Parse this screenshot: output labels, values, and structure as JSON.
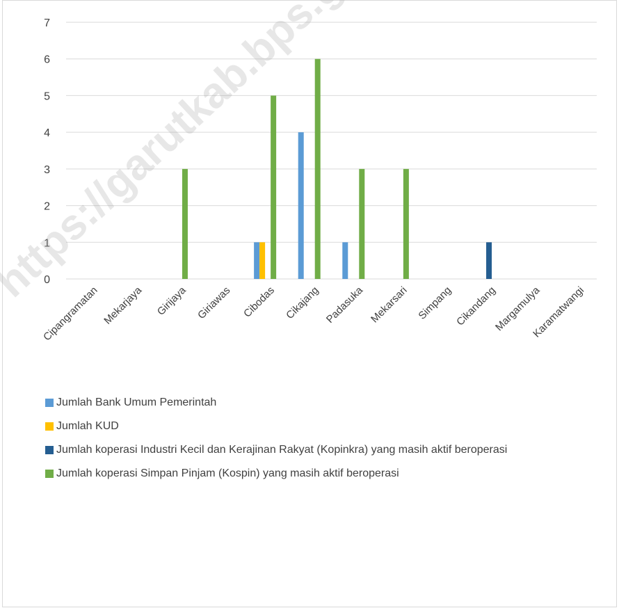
{
  "chart_data": {
    "type": "bar",
    "categories": [
      "Cipangramatan",
      "Mekarjaya",
      "Girijaya",
      "Giriawas",
      "Cibodas",
      "Cikajang",
      "Padasuka",
      "Mekarsari",
      "Simpang",
      "Cikandang",
      "Margamulya",
      "Karamatwangi"
    ],
    "series": [
      {
        "name": "Jumlah Bank Umum Pemerintah",
        "color": "#5b9bd5",
        "values": [
          0,
          0,
          0,
          0,
          1,
          4,
          1,
          0,
          0,
          0,
          0,
          0
        ]
      },
      {
        "name": "Jumlah KUD",
        "color": "#ffc000",
        "values": [
          0,
          0,
          0,
          0,
          1,
          0,
          0,
          0,
          0,
          0,
          0,
          0
        ]
      },
      {
        "name": "Jumlah koperasi Industri Kecil dan Kerajinan Rakyat (Kopinkra) yang masih aktif beroperasi",
        "color": "#255e91",
        "values": [
          0,
          0,
          0,
          0,
          0,
          0,
          0,
          0,
          0,
          1,
          0,
          0
        ]
      },
      {
        "name": "Jumlah koperasi Simpan Pinjam (Kospin) yang masih aktif  beroperasi",
        "color": "#70ad47",
        "values": [
          0,
          0,
          3,
          0,
          5,
          6,
          3,
          3,
          0,
          0,
          0,
          0
        ]
      }
    ],
    "ylim": [
      0,
      7
    ],
    "yticks": [
      0,
      1,
      2,
      3,
      4,
      5,
      6,
      7
    ],
    "grid": true,
    "legend_position": "bottom",
    "title": "",
    "xlabel": "",
    "ylabel": ""
  },
  "watermark": "https://garutkab.bps.go.id"
}
